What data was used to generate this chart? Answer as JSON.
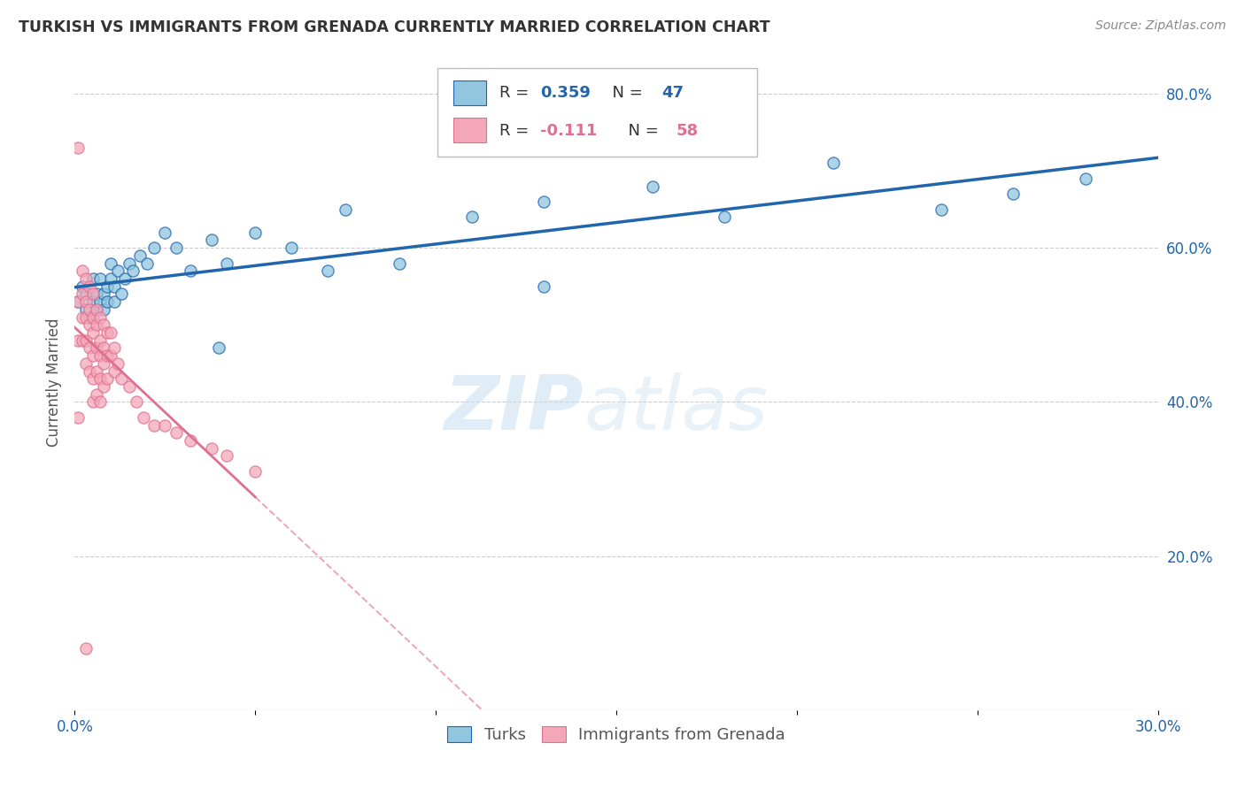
{
  "title": "TURKISH VS IMMIGRANTS FROM GRENADA CURRENTLY MARRIED CORRELATION CHART",
  "source": "Source: ZipAtlas.com",
  "ylabel": "Currently Married",
  "watermark_zip": "ZIP",
  "watermark_atlas": "atlas",
  "x_min": 0.0,
  "x_max": 0.3,
  "y_min": 0.0,
  "y_max": 0.85,
  "x_ticks": [
    0.0,
    0.05,
    0.1,
    0.15,
    0.2,
    0.25,
    0.3
  ],
  "x_tick_labels": [
    "0.0%",
    "",
    "",
    "",
    "",
    "",
    "30.0%"
  ],
  "y_ticks_right": [
    0.2,
    0.4,
    0.6,
    0.8
  ],
  "y_tick_labels_right": [
    "20.0%",
    "40.0%",
    "60.0%",
    "80.0%"
  ],
  "legend_r1": "0.359",
  "legend_n1": "47",
  "legend_r2": "-0.111",
  "legend_n2": "58",
  "color_turks": "#92c5de",
  "color_grenada": "#f4a7b9",
  "color_turks_line": "#2166ac",
  "color_grenada_line": "#e07090",
  "background_color": "#ffffff",
  "grid_color": "#cccccc",
  "turks_x": [
    0.001,
    0.002,
    0.003,
    0.003,
    0.004,
    0.005,
    0.005,
    0.006,
    0.006,
    0.007,
    0.007,
    0.008,
    0.008,
    0.009,
    0.009,
    0.01,
    0.01,
    0.011,
    0.011,
    0.012,
    0.013,
    0.014,
    0.015,
    0.016,
    0.018,
    0.02,
    0.022,
    0.025,
    0.028,
    0.032,
    0.038,
    0.042,
    0.05,
    0.06,
    0.075,
    0.09,
    0.11,
    0.13,
    0.16,
    0.18,
    0.21,
    0.24,
    0.26,
    0.28,
    0.13,
    0.07,
    0.04
  ],
  "turks_y": [
    0.53,
    0.55,
    0.52,
    0.54,
    0.51,
    0.53,
    0.56,
    0.52,
    0.54,
    0.53,
    0.56,
    0.52,
    0.54,
    0.53,
    0.55,
    0.56,
    0.58,
    0.55,
    0.53,
    0.57,
    0.54,
    0.56,
    0.58,
    0.57,
    0.59,
    0.58,
    0.6,
    0.62,
    0.6,
    0.57,
    0.61,
    0.58,
    0.62,
    0.6,
    0.65,
    0.58,
    0.64,
    0.66,
    0.68,
    0.64,
    0.71,
    0.65,
    0.67,
    0.69,
    0.55,
    0.57,
    0.47
  ],
  "grenada_x": [
    0.001,
    0.001,
    0.001,
    0.002,
    0.002,
    0.002,
    0.002,
    0.003,
    0.003,
    0.003,
    0.003,
    0.003,
    0.004,
    0.004,
    0.004,
    0.004,
    0.004,
    0.005,
    0.005,
    0.005,
    0.005,
    0.005,
    0.005,
    0.006,
    0.006,
    0.006,
    0.006,
    0.006,
    0.007,
    0.007,
    0.007,
    0.007,
    0.007,
    0.008,
    0.008,
    0.008,
    0.008,
    0.009,
    0.009,
    0.009,
    0.01,
    0.01,
    0.011,
    0.011,
    0.012,
    0.013,
    0.015,
    0.017,
    0.019,
    0.022,
    0.025,
    0.028,
    0.032,
    0.038,
    0.042,
    0.05,
    0.001,
    0.003
  ],
  "grenada_y": [
    0.73,
    0.53,
    0.48,
    0.57,
    0.54,
    0.51,
    0.48,
    0.56,
    0.53,
    0.51,
    0.48,
    0.45,
    0.55,
    0.52,
    0.5,
    0.47,
    0.44,
    0.54,
    0.51,
    0.49,
    0.46,
    0.43,
    0.4,
    0.52,
    0.5,
    0.47,
    0.44,
    0.41,
    0.51,
    0.48,
    0.46,
    0.43,
    0.4,
    0.5,
    0.47,
    0.45,
    0.42,
    0.49,
    0.46,
    0.43,
    0.49,
    0.46,
    0.47,
    0.44,
    0.45,
    0.43,
    0.42,
    0.4,
    0.38,
    0.37,
    0.37,
    0.36,
    0.35,
    0.34,
    0.33,
    0.31,
    0.38,
    0.08
  ]
}
